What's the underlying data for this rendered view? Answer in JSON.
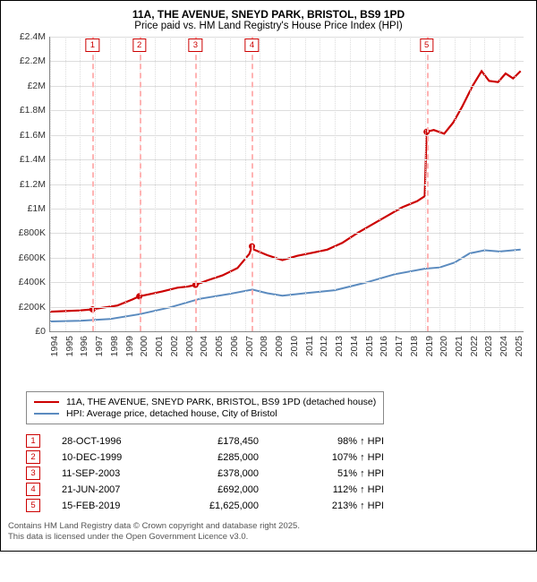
{
  "title": "11A, THE AVENUE, SNEYD PARK, BRISTOL, BS9 1PD",
  "subtitle": "Price paid vs. HM Land Registry's House Price Index (HPI)",
  "chart": {
    "type": "line",
    "background_color": "#ffffff",
    "grid_color": "#dddddd",
    "ylim": [
      0,
      2400000
    ],
    "ytick_step": 200000,
    "yticks": [
      "£0",
      "£200K",
      "£400K",
      "£600K",
      "£800K",
      "£1M",
      "£1.2M",
      "£1.4M",
      "£1.6M",
      "£1.8M",
      "£2M",
      "£2.2M",
      "£2.4M"
    ],
    "x_min": 1994,
    "x_max": 2025.6,
    "xticks": [
      1994,
      1995,
      1996,
      1997,
      1998,
      1999,
      2000,
      2001,
      2002,
      2003,
      2004,
      2005,
      2006,
      2007,
      2008,
      2009,
      2010,
      2011,
      2012,
      2013,
      2014,
      2015,
      2016,
      2017,
      2018,
      2019,
      2020,
      2021,
      2022,
      2023,
      2024,
      2025
    ],
    "series": [
      {
        "name": "property",
        "color": "#cc0000",
        "width": 2.2,
        "points": [
          [
            1994.0,
            160000
          ],
          [
            1996.0,
            170000
          ],
          [
            1996.83,
            178450
          ],
          [
            1997.0,
            183000
          ],
          [
            1998.5,
            210000
          ],
          [
            1999.5,
            260000
          ],
          [
            1999.95,
            285000
          ],
          [
            2000.5,
            298000
          ],
          [
            2001.5,
            325000
          ],
          [
            2002.5,
            355000
          ],
          [
            2003.2,
            365000
          ],
          [
            2003.7,
            378000
          ],
          [
            2004.5,
            415000
          ],
          [
            2005.5,
            455000
          ],
          [
            2006.5,
            515000
          ],
          [
            2007.3,
            630000
          ],
          [
            2007.47,
            692000
          ],
          [
            2007.6,
            665000
          ],
          [
            2008.5,
            620000
          ],
          [
            2009.5,
            580000
          ],
          [
            2010.5,
            615000
          ],
          [
            2011.5,
            640000
          ],
          [
            2012.5,
            665000
          ],
          [
            2013.5,
            720000
          ],
          [
            2014.5,
            800000
          ],
          [
            2015.5,
            870000
          ],
          [
            2016.5,
            940000
          ],
          [
            2017.5,
            1010000
          ],
          [
            2018.5,
            1060000
          ],
          [
            2019.0,
            1100000
          ],
          [
            2019.13,
            1625000
          ],
          [
            2019.6,
            1640000
          ],
          [
            2020.3,
            1610000
          ],
          [
            2020.9,
            1700000
          ],
          [
            2021.5,
            1830000
          ],
          [
            2022.2,
            2000000
          ],
          [
            2022.8,
            2120000
          ],
          [
            2023.3,
            2040000
          ],
          [
            2023.9,
            2030000
          ],
          [
            2024.4,
            2100000
          ],
          [
            2024.9,
            2060000
          ],
          [
            2025.4,
            2120000
          ]
        ]
      },
      {
        "name": "hpi",
        "color": "#5b8bbf",
        "width": 2,
        "points": [
          [
            1994.0,
            80000
          ],
          [
            1996.0,
            85000
          ],
          [
            1998.0,
            100000
          ],
          [
            2000.0,
            140000
          ],
          [
            2002.0,
            195000
          ],
          [
            2004.0,
            265000
          ],
          [
            2006.0,
            305000
          ],
          [
            2007.5,
            340000
          ],
          [
            2008.5,
            310000
          ],
          [
            2009.5,
            290000
          ],
          [
            2011.0,
            310000
          ],
          [
            2013.0,
            335000
          ],
          [
            2015.0,
            395000
          ],
          [
            2017.0,
            465000
          ],
          [
            2019.0,
            510000
          ],
          [
            2020.0,
            520000
          ],
          [
            2021.0,
            560000
          ],
          [
            2022.0,
            635000
          ],
          [
            2023.0,
            660000
          ],
          [
            2024.0,
            650000
          ],
          [
            2025.4,
            665000
          ]
        ]
      }
    ],
    "markers": [
      {
        "n": "1",
        "x": 1996.83,
        "color": "#ffb3b3"
      },
      {
        "n": "2",
        "x": 1999.95,
        "color": "#ffb3b3"
      },
      {
        "n": "3",
        "x": 2003.7,
        "color": "#ffb3b3"
      },
      {
        "n": "4",
        "x": 2007.47,
        "color": "#ffb3b3"
      },
      {
        "n": "5",
        "x": 2019.13,
        "color": "#ffb3b3"
      }
    ],
    "sale_dot_color": "#cc0000"
  },
  "legend": [
    {
      "color": "#cc0000",
      "label": "11A, THE AVENUE, SNEYD PARK, BRISTOL, BS9 1PD (detached house)"
    },
    {
      "color": "#5b8bbf",
      "label": "HPI: Average price, detached house, City of Bristol"
    }
  ],
  "sales": [
    {
      "n": "1",
      "date": "28-OCT-1996",
      "price": "£178,450",
      "pct": "98% ↑ HPI"
    },
    {
      "n": "2",
      "date": "10-DEC-1999",
      "price": "£285,000",
      "pct": "107% ↑ HPI"
    },
    {
      "n": "3",
      "date": "11-SEP-2003",
      "price": "£378,000",
      "pct": "51% ↑ HPI"
    },
    {
      "n": "4",
      "date": "21-JUN-2007",
      "price": "£692,000",
      "pct": "112% ↑ HPI"
    },
    {
      "n": "5",
      "date": "15-FEB-2019",
      "price": "£1,625,000",
      "pct": "213% ↑ HPI"
    }
  ],
  "sale_points": [
    {
      "x": 1996.83,
      "y": 178450
    },
    {
      "x": 1999.95,
      "y": 285000
    },
    {
      "x": 2003.7,
      "y": 378000
    },
    {
      "x": 2007.47,
      "y": 692000
    },
    {
      "x": 2019.13,
      "y": 1625000
    }
  ],
  "footer1": "Contains HM Land Registry data © Crown copyright and database right 2025.",
  "footer2": "This data is licensed under the Open Government Licence v3.0."
}
